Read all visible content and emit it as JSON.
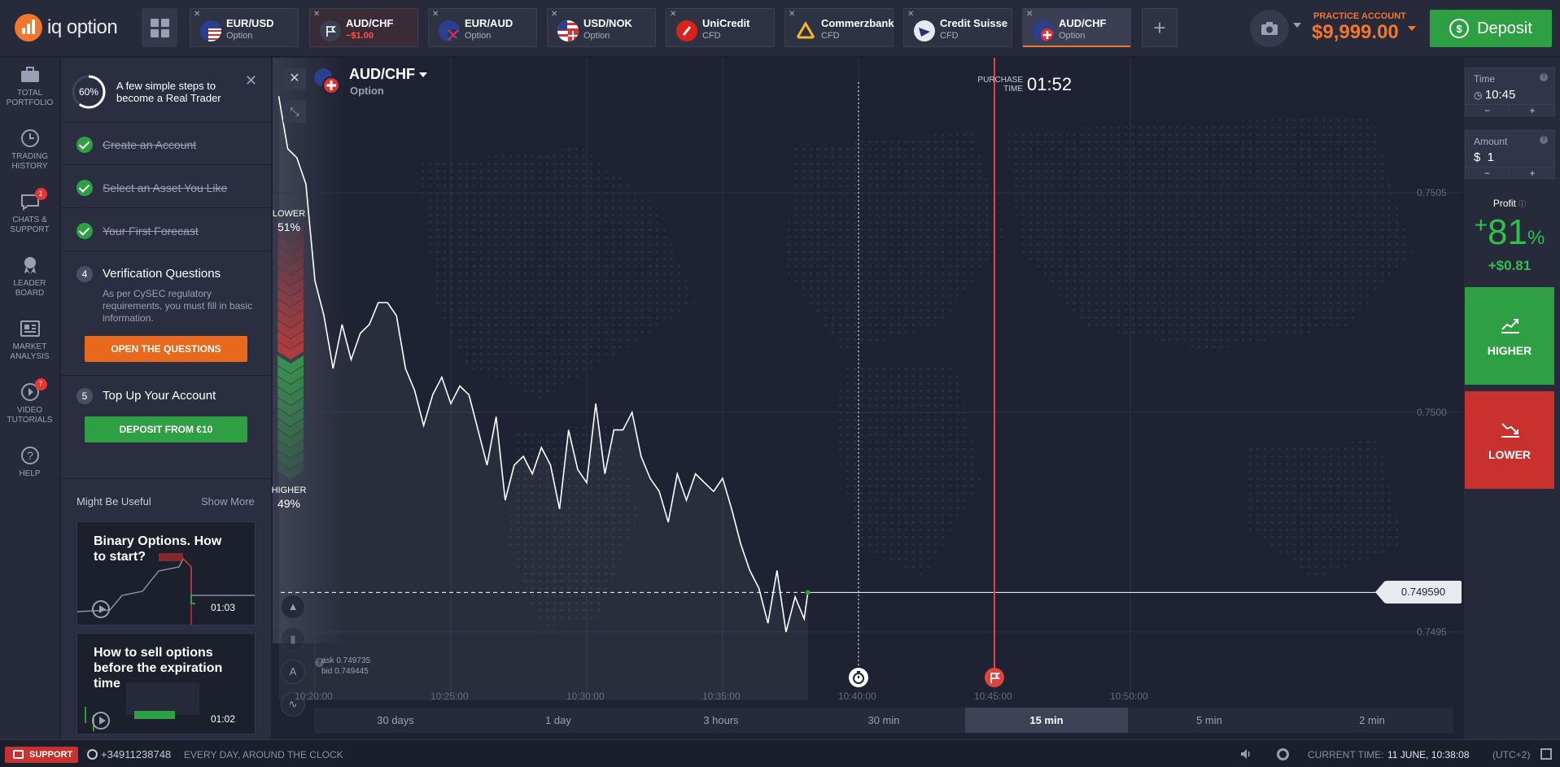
{
  "brand": {
    "name": "iq option",
    "accent": "#f2772b"
  },
  "tabs": [
    {
      "title": "EUR/USD",
      "subtitle": "Option",
      "icon": "eu-us-flag-icon",
      "state": "normal"
    },
    {
      "title": "AUD/CHF",
      "subtitle": "−$1.00",
      "icon": "flag-icon",
      "state": "loss"
    },
    {
      "title": "EUR/AUD",
      "subtitle": "Option",
      "icon": "eu-au-flag-icon",
      "state": "normal"
    },
    {
      "title": "USD/NOK",
      "subtitle": "Option",
      "icon": "us-no-flag-icon",
      "state": "normal"
    },
    {
      "title": "UniCredit",
      "subtitle": "CFD",
      "icon": "unicredit-logo-icon",
      "state": "normal"
    },
    {
      "title": "Commerzbank",
      "subtitle": "CFD",
      "icon": "commerzbank-logo-icon",
      "state": "normal"
    },
    {
      "title": "Credit Suisse",
      "subtitle": "CFD",
      "icon": "credit-suisse-logo-icon",
      "state": "normal"
    },
    {
      "title": "AUD/CHF",
      "subtitle": "Option",
      "icon": "au-ch-flag-icon",
      "state": "active"
    }
  ],
  "account": {
    "label": "PRACTICE ACCOUNT",
    "balance": "$9,999.00",
    "deposit_label": "Deposit"
  },
  "nav": [
    {
      "line1": "TOTAL",
      "line2": "PORTFOLIO",
      "icon": "briefcase-icon"
    },
    {
      "line1": "TRADING",
      "line2": "HISTORY",
      "icon": "clock-icon"
    },
    {
      "line1": "CHATS &",
      "line2": "SUPPORT",
      "icon": "chat-icon",
      "badge": "1"
    },
    {
      "line1": "LEADER",
      "line2": "BOARD",
      "icon": "medal-icon"
    },
    {
      "line1": "MARKET",
      "line2": "ANALYSIS",
      "icon": "newspaper-icon"
    },
    {
      "line1": "VIDEO",
      "line2": "TUTORIALS",
      "icon": "play-icon",
      "badge": "7"
    },
    {
      "line1": "HELP",
      "line2": "",
      "icon": "help-icon"
    }
  ],
  "steps": {
    "progress": "60%",
    "progress_value": 0.6,
    "title": "A few simple steps to become a Real Trader",
    "done": [
      "Create an Account",
      "Select an Asset You Like",
      "Your First Forecast"
    ],
    "step4": {
      "num": "4",
      "title": "Verification Questions",
      "desc": "As per CySEC regulatory requirements, you must fill in basic information.",
      "button": "OPEN THE QUESTIONS"
    },
    "step5": {
      "num": "5",
      "title": "Top Up Your Account",
      "button": "DEPOSIT FROM €10"
    },
    "useful_title": "Might Be Useful",
    "show_more": "Show More",
    "videos": [
      {
        "title": "Binary Options. How to start?",
        "duration": "01:03"
      },
      {
        "title": "How to sell options before the expiration time",
        "duration": "01:02"
      }
    ]
  },
  "chart": {
    "asset": "AUD/CHF",
    "asset_type": "Option",
    "purchase_label": "PURCHASE TIME",
    "purchase_time": "01:52",
    "lower_label": "LOWER",
    "lower_pct": "51%",
    "higher_label": "HIGHER",
    "higher_pct": "49%",
    "ask": "ask 0.749735",
    "bid": "bid 0.749445",
    "current_price": "0.749590",
    "timeframes": [
      "30 days",
      "1 day",
      "3 hours",
      "30 min",
      "15 min",
      "5 min",
      "2 min"
    ],
    "active_timeframe": "15 min"
  },
  "chart_data": {
    "type": "line",
    "x_ticks": [
      "10:20:00",
      "10:25:00",
      "10:30:00",
      "10:35:00",
      "10:40:00",
      "10:45:00",
      "10:50:00"
    ],
    "y_ticks": [
      "0.7505",
      "0.7500",
      "0.7495"
    ],
    "ylim": [
      0.74935,
      0.75075
    ],
    "x": [
      "10:18:40",
      "10:19:00",
      "10:19:20",
      "10:19:40",
      "10:20:00",
      "10:20:20",
      "10:20:40",
      "10:21:00",
      "10:21:20",
      "10:21:40",
      "10:22:00",
      "10:22:20",
      "10:22:40",
      "10:23:00",
      "10:23:20",
      "10:23:40",
      "10:24:00",
      "10:24:20",
      "10:24:40",
      "10:25:00",
      "10:25:20",
      "10:25:40",
      "10:26:00",
      "10:26:20",
      "10:26:40",
      "10:27:00",
      "10:27:20",
      "10:27:40",
      "10:28:00",
      "10:28:20",
      "10:28:40",
      "10:29:00",
      "10:29:20",
      "10:29:40",
      "10:30:00",
      "10:30:20",
      "10:30:40",
      "10:31:00",
      "10:31:20",
      "10:31:40",
      "10:32:00",
      "10:32:20",
      "10:32:40",
      "10:33:00",
      "10:33:20",
      "10:33:40",
      "10:34:00",
      "10:34:20",
      "10:34:40",
      "10:35:00",
      "10:35:20",
      "10:35:40",
      "10:36:00",
      "10:36:20",
      "10:36:40",
      "10:37:00",
      "10:37:20",
      "10:37:40",
      "10:38:00",
      "10:38:08"
    ],
    "values": [
      0.75072,
      0.7506,
      0.75058,
      0.75052,
      0.7503,
      0.75022,
      0.7501,
      0.7502,
      0.75012,
      0.75018,
      0.7502,
      0.75025,
      0.75025,
      0.75022,
      0.7501,
      0.75005,
      0.74997,
      0.75004,
      0.75008,
      0.75002,
      0.75006,
      0.75004,
      0.74996,
      0.74988,
      0.74999,
      0.7498,
      0.74988,
      0.7499,
      0.74986,
      0.74992,
      0.74988,
      0.74978,
      0.74996,
      0.74987,
      0.74984,
      0.75002,
      0.74986,
      0.74996,
      0.74996,
      0.75,
      0.7499,
      0.74985,
      0.74982,
      0.74975,
      0.74986,
      0.7498,
      0.74986,
      0.74984,
      0.74982,
      0.74985,
      0.74978,
      0.7497,
      0.74964,
      0.7496,
      0.74952,
      0.74964,
      0.7495,
      0.74958,
      0.74953,
      0.74959
    ],
    "current_price": 0.74959,
    "purchase_line": "10:40:00",
    "expiration_line": "10:45:00",
    "grid": true
  },
  "trade": {
    "time_label": "Time",
    "time_value": "10:45",
    "amount_label": "Amount",
    "amount_value": "$  1",
    "minus": "−",
    "plus": "+",
    "profit_label": "Profit",
    "profit_sign": "+",
    "profit_pct": "81",
    "profit_unit": "%",
    "profit_amount": "+$0.81",
    "higher_label": "HIGHER",
    "lower_label": "LOWER"
  },
  "footer": {
    "support": "SUPPORT",
    "phone": "+34911238748",
    "phone_note": "EVERY DAY, AROUND THE CLOCK",
    "current_time_label": "CURRENT TIME:",
    "current_time": "11 JUNE, 10:38:08",
    "timezone": "(UTC+2)"
  }
}
